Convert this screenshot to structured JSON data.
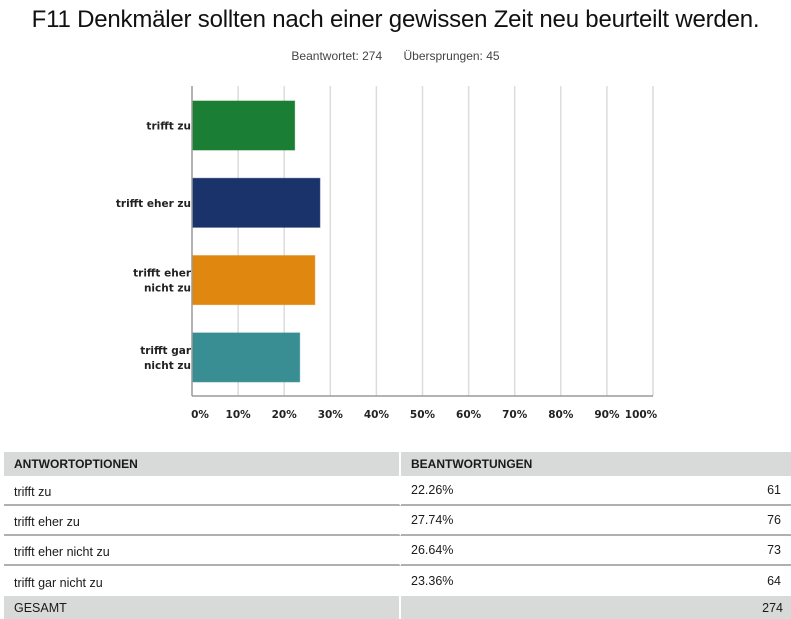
{
  "header": {
    "title": "F11 Denkmäler sollten nach einer gewissen Zeit neu beurteilt werden.",
    "answered": "Beantwortet: 274",
    "skipped": "Übersprungen: 45"
  },
  "chart_data": {
    "type": "bar",
    "orientation": "horizontal",
    "title": "F11 Denkmäler sollten nach einer gewissen Zeit neu beurteilt werden.",
    "categories": [
      "trifft zu",
      "trifft eher zu",
      "trifft eher nicht zu",
      "trifft gar nicht zu"
    ],
    "category_label_lines": [
      [
        "trifft zu"
      ],
      [
        "trifft eher zu"
      ],
      [
        "trifft eher",
        "nicht zu"
      ],
      [
        "trifft gar",
        "nicht zu"
      ]
    ],
    "values": [
      22.26,
      27.74,
      26.64,
      23.36
    ],
    "colors": [
      "#1a7f34",
      "#1b336b",
      "#df870f",
      "#388e93"
    ],
    "xlabel": "",
    "ylabel": "",
    "xlim": [
      0,
      100
    ],
    "xticks": [
      0,
      10,
      20,
      30,
      40,
      50,
      60,
      70,
      80,
      90,
      100
    ],
    "xtick_labels": [
      "0%",
      "10%",
      "20%",
      "30%",
      "40%",
      "50%",
      "60%",
      "70%",
      "80%",
      "90%",
      "100%"
    ],
    "grid": true,
    "legend": "none"
  },
  "table": {
    "headers": [
      "ANTWORTOPTIONEN",
      "BEANTWORTUNGEN"
    ],
    "rows": [
      {
        "option": "trifft zu",
        "percent": "22.26%",
        "count": "61"
      },
      {
        "option": "trifft eher zu",
        "percent": "27.74%",
        "count": "76"
      },
      {
        "option": "trifft eher nicht zu",
        "percent": "26.64%",
        "count": "73"
      },
      {
        "option": "trifft gar nicht zu",
        "percent": "23.36%",
        "count": "64"
      }
    ],
    "total_label": "GESAMT",
    "total_count": "274"
  }
}
